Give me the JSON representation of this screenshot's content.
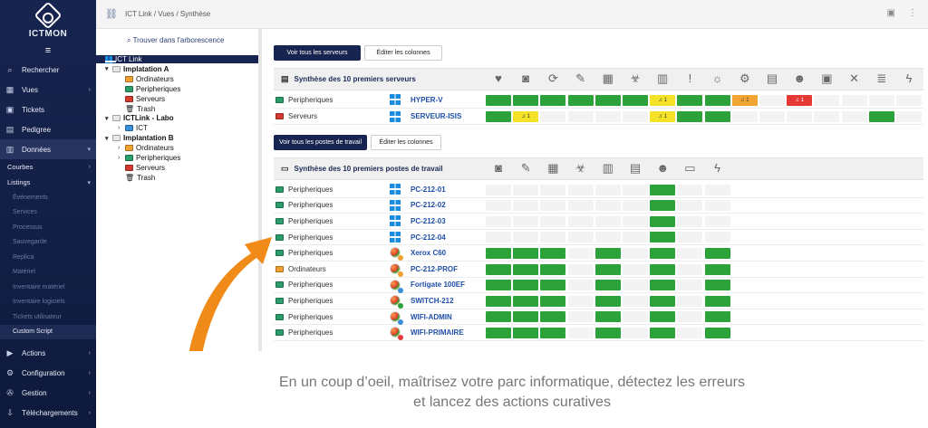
{
  "app": {
    "logo_text": "ICTMON"
  },
  "sidebar": {
    "items": [
      {
        "label": "Rechercher",
        "icon": "search-icon",
        "glyph": "⌕"
      },
      {
        "label": "Vues",
        "icon": "grid-icon",
        "glyph": "▦",
        "chevron": "›"
      },
      {
        "label": "Tickets",
        "icon": "ticket-icon",
        "glyph": "▣"
      },
      {
        "label": "Pedigree",
        "icon": "document-icon",
        "glyph": "▤"
      },
      {
        "label": "Données",
        "icon": "chart-icon",
        "glyph": "▥",
        "chevron": "▾"
      }
    ],
    "sub_items": [
      {
        "label": "Courbes",
        "chevron": "›"
      },
      {
        "label": "Listings",
        "chevron": "▾"
      }
    ],
    "listings": [
      "Événements",
      "Services",
      "Processus",
      "Sauvegarde",
      "Replica",
      "Matériel",
      "Inventaire matériel",
      "Inventaire logiciels",
      "Tickets utilisateur",
      "Custom Script"
    ],
    "bottom_items": [
      {
        "label": "Actions",
        "icon": "play-icon",
        "glyph": "▶",
        "chevron": "›"
      },
      {
        "label": "Configuration",
        "icon": "gear-icon",
        "glyph": "⚙",
        "chevron": "›"
      },
      {
        "label": "Gestion",
        "icon": "wrench-icon",
        "glyph": "✇",
        "chevron": "›"
      },
      {
        "label": "Téléchargements",
        "icon": "download-icon",
        "glyph": "⇩",
        "chevron": "›"
      }
    ]
  },
  "topbar": {
    "breadcrumb": "ICT Link  /  Vues  /  Synthèse"
  },
  "tree": {
    "search_label": "Trouver dans l'arborescence",
    "nodes": [
      {
        "label": "ICT Link",
        "level": 0
      },
      {
        "label": "Implatation A",
        "level": 1,
        "toggle": "▾",
        "bold": true
      },
      {
        "label": "Ordinateurs",
        "level": 2,
        "color": "#f0a030"
      },
      {
        "label": "Peripheriques",
        "level": 2,
        "color": "#2a9d6a"
      },
      {
        "label": "Serveurs",
        "level": 2,
        "color": "#d43a30"
      },
      {
        "label": "Trash",
        "level": 2,
        "trash": true
      },
      {
        "label": "ICTLink - Labo",
        "level": 1,
        "toggle": "▾",
        "bold": true
      },
      {
        "label": "ICT",
        "level": 2,
        "toggle": "›",
        "color": "#3a8fd6"
      },
      {
        "label": "Implantation B",
        "level": 1,
        "toggle": "▾",
        "bold": true
      },
      {
        "label": "Ordinateurs",
        "level": 2,
        "toggle": "›",
        "color": "#f0a030"
      },
      {
        "label": "Peripheriques",
        "level": 2,
        "toggle": "›",
        "color": "#2a9d6a"
      },
      {
        "label": "Serveurs",
        "level": 2,
        "color": "#d43a30"
      },
      {
        "label": "Trash",
        "level": 2,
        "trash": true
      }
    ]
  },
  "servers": {
    "view_all": "Voir tous les serveurs",
    "edit_columns": "Éditer les colonnes",
    "title": "Synthèse des 10 premiers serveurs",
    "columns": [
      "heartbeat-icon",
      "hdd-icon",
      "backup-icon",
      "pen-icon",
      "cpu-icon",
      "biohazard-icon",
      "building-icon",
      "exclamation-icon",
      "sun-icon",
      "gear-icon",
      "database-lock-icon",
      "users-icon",
      "network-port-icon",
      "cross-arrows-icon",
      "server-stack-icon",
      "power-plug-icon"
    ],
    "column_glyphs": [
      "♥",
      "◙",
      "⟳",
      "✎",
      "▦",
      "☣",
      "▥",
      "!",
      "☼",
      "⚙",
      "▤",
      "☻",
      "▣",
      "✕",
      "≣",
      "ϟ"
    ],
    "rows": [
      {
        "category": "Peripheriques",
        "folder": "#2a9d6a",
        "name": "HYPER-V",
        "device": "windows",
        "cells": [
          "g",
          "g",
          "g",
          "g",
          "g",
          "g",
          "y:1",
          "g",
          "g",
          "o:1",
          "e",
          "r:1",
          "e",
          "e",
          "e",
          "e"
        ]
      },
      {
        "category": "Serveurs",
        "folder": "#d43a30",
        "name": "SERVEUR-ISIS",
        "device": "windows",
        "cells": [
          "g",
          "y:1",
          "e",
          "e",
          "e",
          "e",
          "y:1",
          "g",
          "g",
          "e",
          "e",
          "e",
          "e",
          "e",
          "g",
          "e"
        ]
      }
    ]
  },
  "workstations": {
    "view_all": "Voir tous les postes de travail",
    "edit_columns": "Éditer les colonnes",
    "title": "Synthèse des 10 premiers postes de travail",
    "columns": [
      "hdd-icon",
      "pen-icon",
      "cpu-icon",
      "biohazard-icon",
      "building-icon",
      "database-lock-icon",
      "users-icon",
      "monitor-settings-icon",
      "power-plug-icon"
    ],
    "column_glyphs": [
      "◙",
      "✎",
      "▦",
      "☣",
      "▥",
      "▤",
      "☻",
      "▭",
      "ϟ"
    ],
    "rows": [
      {
        "category": "Peripheriques",
        "folder": "#2a9d6a",
        "name": "PC-212-01",
        "device": "windows",
        "cells": [
          "e",
          "e",
          "e",
          "e",
          "e",
          "e",
          "g",
          "e",
          "e"
        ]
      },
      {
        "category": "Peripheriques",
        "folder": "#2a9d6a",
        "name": "PC-212-02",
        "device": "windows",
        "cells": [
          "e",
          "e",
          "e",
          "e",
          "e",
          "e",
          "g",
          "e",
          "e"
        ]
      },
      {
        "category": "Peripheriques",
        "folder": "#2a9d6a",
        "name": "PC-212-03",
        "device": "windows",
        "cells": [
          "e",
          "e",
          "e",
          "e",
          "e",
          "e",
          "g",
          "e",
          "e"
        ]
      },
      {
        "category": "Peripheriques",
        "folder": "#2a9d6a",
        "name": "PC-212-04",
        "device": "windows",
        "cells": [
          "e",
          "e",
          "e",
          "e",
          "e",
          "e",
          "g",
          "e",
          "e"
        ]
      },
      {
        "category": "Peripheriques",
        "folder": "#2a9d6a",
        "name": "Xerox C60",
        "device": "ball",
        "dot": "#f0a030",
        "cells": [
          "g",
          "g",
          "g",
          "e",
          "g",
          "e",
          "g",
          "e",
          "g"
        ]
      },
      {
        "category": "Ordinateurs",
        "folder": "#f0a030",
        "name": "PC-212-PROF",
        "device": "ball",
        "dot": "#f0a030",
        "cells": [
          "g",
          "g",
          "g",
          "e",
          "g",
          "e",
          "g",
          "e",
          "g"
        ]
      },
      {
        "category": "Peripheriques",
        "folder": "#2a9d6a",
        "name": "Fortigate 100EF",
        "device": "ball",
        "dot": "#3a8fd6",
        "cells": [
          "g",
          "g",
          "g",
          "e",
          "g",
          "e",
          "g",
          "e",
          "g"
        ]
      },
      {
        "category": "Peripheriques",
        "folder": "#2a9d6a",
        "name": "SWITCH-212",
        "device": "ball",
        "dot": "#2ea23a",
        "cells": [
          "g",
          "g",
          "g",
          "e",
          "g",
          "e",
          "g",
          "e",
          "g"
        ]
      },
      {
        "category": "Peripheriques",
        "folder": "#2a9d6a",
        "name": "WIFI-ADMIN",
        "device": "ball",
        "dot": "#3a8fd6",
        "cells": [
          "g",
          "g",
          "g",
          "e",
          "g",
          "e",
          "g",
          "e",
          "g"
        ]
      },
      {
        "category": "Peripheriques",
        "folder": "#2a9d6a",
        "name": "WIFI-PRIMAIRE",
        "device": "ball",
        "dot": "#e53935",
        "cells": [
          "g",
          "g",
          "g",
          "e",
          "g",
          "e",
          "g",
          "e",
          "g"
        ]
      }
    ]
  },
  "caption": {
    "line1": "En un coup d’oeil, maîtrisez votre parc informatique, détectez les erreurs",
    "line2": "et lancez des actions curatives"
  },
  "colors": {
    "sidebar": "#17244f",
    "accent": "#1f4fa8",
    "ok": "#2ea23a",
    "warn": "#f3e228",
    "alert": "#f3a534",
    "critical": "#e53935",
    "arrow": "#f08a18"
  }
}
